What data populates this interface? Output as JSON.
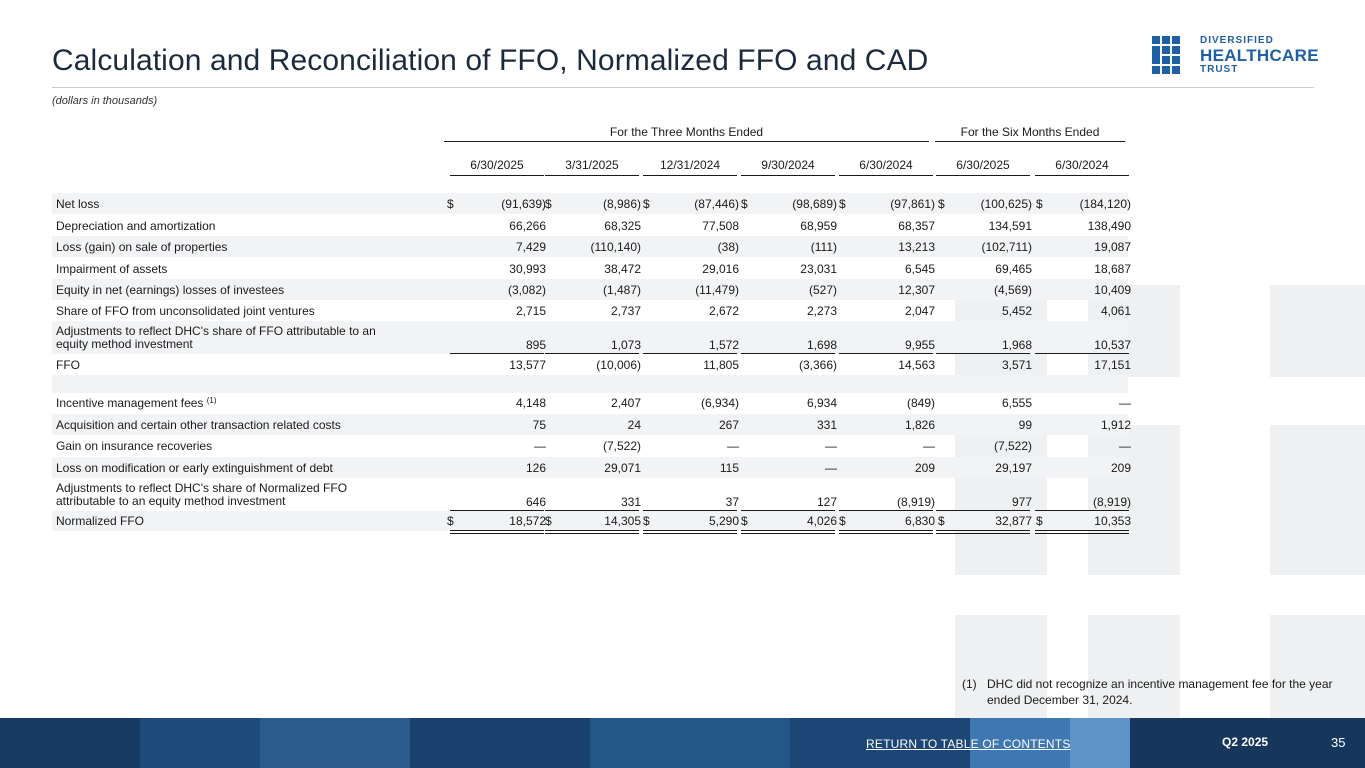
{
  "header": {
    "title": "Calculation and Reconciliation of FFO, Normalized FFO and CAD",
    "subtitle": "(dollars in thousands)"
  },
  "logo": {
    "line1": "DIVERSIFIED",
    "line2": "HEALTHCARE",
    "line3": "TRUST",
    "color": "#1f5fa3"
  },
  "table": {
    "groups": [
      "For the Three Months Ended",
      "For the Six Months Ended"
    ],
    "columns": [
      "6/30/2025",
      "3/31/2025",
      "12/31/2024",
      "9/30/2024",
      "6/30/2024",
      "6/30/2025",
      "6/30/2024"
    ],
    "dollar_sign": "$",
    "rows": [
      {
        "label": "Net loss",
        "values": [
          "(91,639)",
          "(8,986)",
          "(87,446)",
          "(98,689)",
          "(97,861)",
          "(100,625)",
          "(184,120)"
        ]
      },
      {
        "label": "Depreciation and amortization",
        "values": [
          "66,266",
          "68,325",
          "77,508",
          "68,959",
          "68,357",
          "134,591",
          "138,490"
        ]
      },
      {
        "label": "Loss (gain) on sale of properties",
        "values": [
          "7,429",
          "(110,140)",
          "(38)",
          "(111)",
          "13,213",
          "(102,711)",
          "19,087"
        ]
      },
      {
        "label": "Impairment of assets",
        "values": [
          "30,993",
          "38,472",
          "29,016",
          "23,031",
          "6,545",
          "69,465",
          "18,687"
        ]
      },
      {
        "label": "Equity in net (earnings) losses of investees",
        "values": [
          "(3,082)",
          "(1,487)",
          "(11,479)",
          "(527)",
          "12,307",
          "(4,569)",
          "10,409"
        ]
      },
      {
        "label": "Share of FFO from unconsolidated joint ventures",
        "values": [
          "2,715",
          "2,737",
          "2,672",
          "2,273",
          "2,047",
          "5,452",
          "4,061"
        ]
      },
      {
        "label_line1": "Adjustments to reflect DHC's share of FFO attributable to an",
        "label_line2": "equity method investment",
        "values": [
          "895",
          "1,073",
          "1,572",
          "1,698",
          "9,955",
          "1,968",
          "10,537"
        ]
      },
      {
        "label": "FFO",
        "values": [
          "13,577",
          "(10,006)",
          "11,805",
          "(3,366)",
          "14,563",
          "3,571",
          "17,151"
        ]
      },
      {
        "label": "Incentive management fees",
        "sup": "(1)",
        "values": [
          "4,148",
          "2,407",
          "(6,934)",
          "6,934",
          "(849)",
          "6,555",
          "—"
        ]
      },
      {
        "label": "Acquisition and certain other transaction related costs",
        "values": [
          "75",
          "24",
          "267",
          "331",
          "1,826",
          "99",
          "1,912"
        ]
      },
      {
        "label": "Gain on insurance recoveries",
        "values": [
          "—",
          "(7,522)",
          "—",
          "—",
          "—",
          "(7,522)",
          "—"
        ]
      },
      {
        "label": "Loss on modification or early extinguishment of debt",
        "values": [
          "126",
          "29,071",
          "115",
          "—",
          "209",
          "29,197",
          "209"
        ]
      },
      {
        "label_line1": "Adjustments to reflect DHC's share of Normalized FFO",
        "label_line2": "attributable to an equity method investment",
        "values": [
          "646",
          "331",
          "37",
          "127",
          "(8,919)",
          "977",
          "(8,919)"
        ]
      },
      {
        "label": "Normalized FFO",
        "values": [
          "18,572",
          "14,305",
          "5,290",
          "4,026",
          "6,830",
          "32,877",
          "10,353"
        ]
      }
    ]
  },
  "footnote": {
    "number": "(1)",
    "text": "DHC did not recognize an incentive management fee for the year ended December 31, 2024."
  },
  "footer": {
    "return_link": "RETURN TO TABLE OF CONTENTS",
    "quarter": "Q2 2025",
    "page": "35"
  }
}
